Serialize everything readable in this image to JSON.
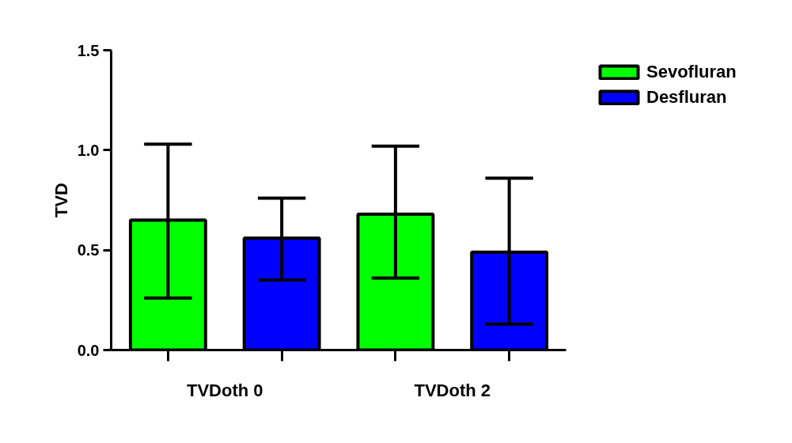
{
  "chart_data": {
    "type": "bar",
    "ylabel": "TVD",
    "categories": [
      "TVDoth 0",
      "TVDoth 2"
    ],
    "series": [
      {
        "name": "Sevofluran",
        "color": "#00ff00",
        "values": [
          0.65,
          0.68
        ],
        "errors": [
          [
            0.26,
            1.03
          ],
          [
            0.36,
            1.02
          ]
        ]
      },
      {
        "name": "Desfluran",
        "color": "#0000ff",
        "values": [
          0.56,
          0.49
        ],
        "errors": [
          [
            0.35,
            0.76
          ],
          [
            0.13,
            0.86
          ]
        ]
      }
    ],
    "ylim": [
      0,
      1.5
    ],
    "yticks": [
      {
        "value": 0,
        "label": "0.0"
      },
      {
        "value": 0.5,
        "label": "0.5"
      },
      {
        "value": 1,
        "label": "1.0"
      },
      {
        "value": 1.5,
        "label": "1.5"
      }
    ],
    "grid": false,
    "legend": "top right"
  }
}
